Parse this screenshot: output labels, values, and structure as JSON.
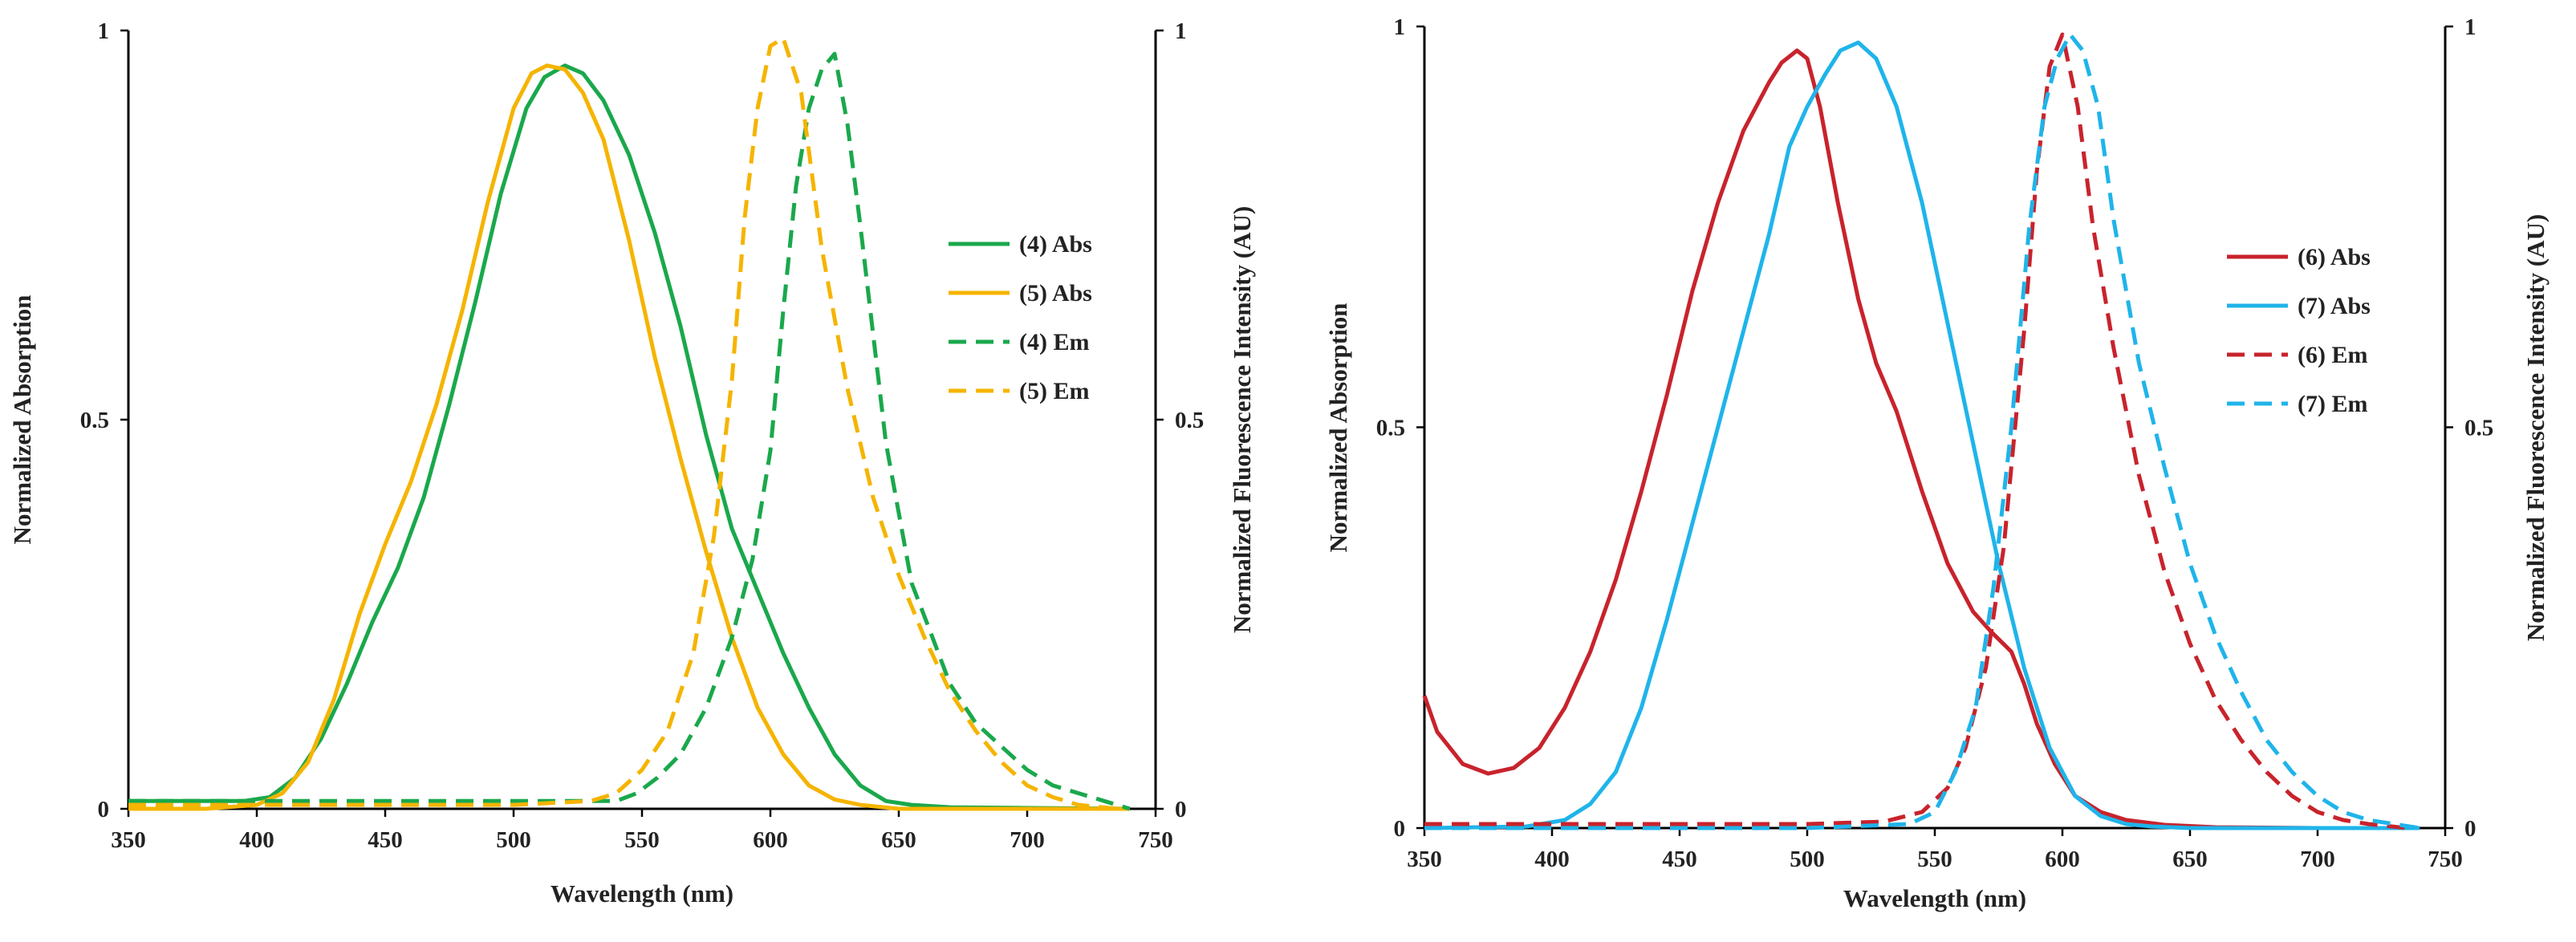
{
  "chart_data": [
    {
      "type": "line",
      "title": "",
      "xlabel": "Wavelength (nm)",
      "ylabel": "Normalized Absorption",
      "y2label": "Normalized Fluorescence Intensity (AU)",
      "xlim": [
        350,
        750
      ],
      "ylim": [
        0,
        1
      ],
      "y2lim": [
        0,
        1
      ],
      "xticks": [
        "350",
        "400",
        "450",
        "500",
        "550",
        "600",
        "650",
        "700",
        "750"
      ],
      "yticks": [
        "0",
        "0.5",
        "1"
      ],
      "y2ticks": [
        "0",
        "0.5",
        "1"
      ],
      "grid": false,
      "legend_position": "right",
      "series": [
        {
          "name": "(4) Abs",
          "color": "#1aa84c",
          "dash": "solid",
          "axis": "left",
          "x": [
            350,
            380,
            395,
            405,
            415,
            425,
            435,
            445,
            455,
            465,
            475,
            485,
            495,
            505,
            512,
            520,
            527,
            535,
            545,
            555,
            565,
            575,
            585,
            595,
            605,
            615,
            625,
            635,
            645,
            655,
            670,
            700,
            740
          ],
          "y": [
            0.01,
            0.01,
            0.01,
            0.015,
            0.04,
            0.09,
            0.16,
            0.24,
            0.31,
            0.4,
            0.52,
            0.65,
            0.79,
            0.9,
            0.94,
            0.955,
            0.945,
            0.91,
            0.84,
            0.74,
            0.62,
            0.48,
            0.36,
            0.28,
            0.2,
            0.13,
            0.07,
            0.03,
            0.01,
            0.005,
            0.002,
            0.001,
            0.0
          ]
        },
        {
          "name": "(5) Abs",
          "color": "#f5b400",
          "dash": "solid",
          "axis": "left",
          "x": [
            350,
            380,
            400,
            410,
            420,
            430,
            440,
            450,
            460,
            470,
            480,
            490,
            500,
            507,
            513,
            520,
            527,
            535,
            545,
            555,
            565,
            575,
            585,
            595,
            605,
            615,
            625,
            635,
            650,
            700,
            740
          ],
          "y": [
            0.0,
            0.0,
            0.005,
            0.02,
            0.06,
            0.14,
            0.25,
            0.34,
            0.42,
            0.52,
            0.64,
            0.78,
            0.9,
            0.945,
            0.955,
            0.95,
            0.92,
            0.86,
            0.73,
            0.58,
            0.45,
            0.33,
            0.22,
            0.13,
            0.07,
            0.03,
            0.012,
            0.005,
            0.0,
            0.0,
            0.0
          ]
        },
        {
          "name": "(4) Em",
          "color": "#1aa84c",
          "dash": "dashed",
          "axis": "right",
          "x": [
            350,
            500,
            540,
            548,
            556,
            565,
            575,
            585,
            593,
            600,
            605,
            610,
            615,
            620,
            625,
            630,
            635,
            640,
            645,
            650,
            655,
            662,
            670,
            680,
            690,
            700,
            710,
            720,
            730,
            740
          ],
          "y": [
            0.01,
            0.01,
            0.01,
            0.02,
            0.04,
            0.07,
            0.13,
            0.22,
            0.32,
            0.46,
            0.64,
            0.8,
            0.9,
            0.95,
            0.97,
            0.88,
            0.75,
            0.61,
            0.47,
            0.38,
            0.29,
            0.23,
            0.16,
            0.11,
            0.08,
            0.05,
            0.03,
            0.02,
            0.01,
            0.0
          ]
        },
        {
          "name": "(5) Em",
          "color": "#f5b400",
          "dash": "dashed",
          "axis": "right",
          "x": [
            350,
            500,
            530,
            540,
            550,
            560,
            570,
            578,
            585,
            590,
            595,
            600,
            605,
            612,
            620,
            630,
            640,
            650,
            660,
            670,
            680,
            690,
            700,
            710,
            720,
            735
          ],
          "y": [
            0.005,
            0.005,
            0.01,
            0.02,
            0.05,
            0.1,
            0.2,
            0.35,
            0.55,
            0.76,
            0.9,
            0.98,
            0.99,
            0.92,
            0.72,
            0.54,
            0.4,
            0.3,
            0.22,
            0.15,
            0.1,
            0.06,
            0.03,
            0.015,
            0.005,
            0.0
          ]
        }
      ]
    },
    {
      "type": "line",
      "title": "",
      "xlabel": "Wavelength (nm)",
      "ylabel": "Normalized Absorption",
      "y2label": "Normalized Fluorescence Intensity (AU)",
      "xlim": [
        350,
        750
      ],
      "ylim": [
        0,
        1
      ],
      "y2lim": [
        0,
        1
      ],
      "xticks": [
        "350",
        "400",
        "450",
        "500",
        "550",
        "600",
        "650",
        "700",
        "750"
      ],
      "yticks": [
        "0",
        "0.5",
        "1"
      ],
      "y2ticks": [
        "0",
        "0.5",
        "1"
      ],
      "grid": false,
      "legend_position": "right",
      "series": [
        {
          "name": "(6) Abs",
          "color": "#c8232c",
          "dash": "solid",
          "axis": "left",
          "x": [
            350,
            355,
            365,
            375,
            385,
            395,
            405,
            415,
            425,
            435,
            445,
            455,
            465,
            475,
            485,
            490,
            496,
            500,
            505,
            512,
            520,
            527,
            535,
            545,
            555,
            565,
            572,
            580,
            585,
            590,
            597,
            605,
            615,
            625,
            640,
            660,
            700,
            740
          ],
          "y": [
            0.165,
            0.12,
            0.08,
            0.068,
            0.075,
            0.1,
            0.15,
            0.22,
            0.31,
            0.42,
            0.54,
            0.67,
            0.78,
            0.87,
            0.93,
            0.955,
            0.97,
            0.96,
            0.9,
            0.78,
            0.66,
            0.58,
            0.52,
            0.42,
            0.33,
            0.27,
            0.245,
            0.22,
            0.18,
            0.13,
            0.08,
            0.04,
            0.02,
            0.01,
            0.004,
            0.001,
            0.0,
            0.0
          ]
        },
        {
          "name": "(7) Abs",
          "color": "#1fb4ea",
          "dash": "solid",
          "axis": "left",
          "x": [
            350,
            390,
            405,
            415,
            425,
            435,
            445,
            455,
            465,
            475,
            485,
            493,
            500,
            507,
            513,
            520,
            527,
            535,
            545,
            555,
            565,
            575,
            585,
            595,
            605,
            615,
            625,
            635,
            650,
            700,
            740
          ],
          "y": [
            0.0,
            0.002,
            0.01,
            0.03,
            0.07,
            0.15,
            0.26,
            0.38,
            0.5,
            0.62,
            0.74,
            0.85,
            0.9,
            0.94,
            0.97,
            0.98,
            0.96,
            0.9,
            0.78,
            0.63,
            0.48,
            0.33,
            0.2,
            0.1,
            0.04,
            0.015,
            0.005,
            0.002,
            0.0,
            0.0,
            0.0
          ]
        },
        {
          "name": "(6) Em",
          "color": "#c8232c",
          "dash": "dashed",
          "axis": "right",
          "x": [
            350,
            500,
            530,
            545,
            555,
            562,
            570,
            577,
            585,
            590,
            595,
            600,
            606,
            612,
            620,
            630,
            640,
            650,
            660,
            670,
            680,
            690,
            700,
            710,
            720,
            735
          ],
          "y": [
            0.005,
            0.005,
            0.008,
            0.02,
            0.05,
            0.1,
            0.2,
            0.35,
            0.62,
            0.82,
            0.95,
            0.99,
            0.9,
            0.75,
            0.6,
            0.44,
            0.32,
            0.23,
            0.16,
            0.11,
            0.07,
            0.04,
            0.02,
            0.01,
            0.005,
            0.0
          ]
        },
        {
          "name": "(7) Em",
          "color": "#1fb4ea",
          "dash": "dashed",
          "axis": "right",
          "x": [
            350,
            500,
            540,
            550,
            558,
            566,
            573,
            580,
            587,
            593,
            598,
            603,
            608,
            614,
            620,
            630,
            640,
            650,
            660,
            670,
            680,
            690,
            700,
            710,
            720,
            740
          ],
          "y": [
            0.0,
            0.0,
            0.005,
            0.02,
            0.07,
            0.15,
            0.3,
            0.5,
            0.75,
            0.9,
            0.96,
            0.99,
            0.97,
            0.9,
            0.76,
            0.58,
            0.45,
            0.33,
            0.24,
            0.17,
            0.11,
            0.07,
            0.04,
            0.02,
            0.01,
            0.0
          ]
        }
      ]
    }
  ]
}
